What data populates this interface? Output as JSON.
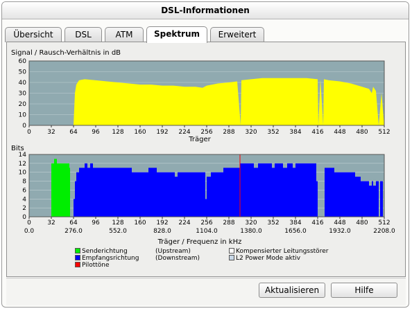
{
  "window": {
    "title": "DSL-Informationen"
  },
  "tabs": [
    {
      "label": "Übersicht",
      "active": false
    },
    {
      "label": "DSL",
      "active": false
    },
    {
      "label": "ATM",
      "active": false
    },
    {
      "label": "Spektrum",
      "active": true
    },
    {
      "label": "Erweitert",
      "active": false
    }
  ],
  "legend": {
    "send_label": "Senderichtung",
    "send_dir": "(Upstream)",
    "recv_label": "Empfangsrichtung",
    "recv_dir": "(Downstream)",
    "pilot_label": "Pilottöne",
    "comp_label": "Kompensierter Leitungsstörer",
    "l2_label": "L2 Power Mode aktiv",
    "colors": {
      "send": "#00ee00",
      "recv": "#0000ff",
      "pilot": "#ff0000",
      "comp": "#ffffff",
      "l2": "#c8d8e8"
    }
  },
  "buttons": {
    "refresh": "Aktualisieren",
    "help": "Hilfe"
  },
  "chart_data": [
    {
      "type": "area",
      "title": "Signal / Rausch-Verhältnis in dB",
      "xlabel": "Träger",
      "xlim": [
        0,
        512
      ],
      "ylim": [
        0,
        60
      ],
      "x_ticks": [
        0,
        32,
        64,
        96,
        128,
        160,
        192,
        224,
        256,
        288,
        320,
        352,
        384,
        416,
        448,
        480,
        512
      ],
      "y_ticks": [
        0,
        10,
        20,
        30,
        40,
        50,
        60
      ],
      "grid": true,
      "fill_color": "#ffff00",
      "background_color": "#90aab0",
      "series": [
        {
          "x": [
            64,
            66,
            68,
            72,
            80,
            96,
            112,
            128,
            144,
            160,
            176,
            192,
            208,
            224,
            240,
            250,
            256,
            264,
            272,
            288,
            300,
            305,
            306,
            320,
            336,
            352,
            368,
            384,
            400,
            416,
            417,
            420,
            424,
            425,
            432,
            448,
            464,
            480,
            490,
            494,
            496,
            500,
            504,
            508,
            512
          ],
          "y": [
            0,
            30,
            38,
            42,
            43,
            42,
            41,
            40,
            39,
            38,
            38,
            37,
            37,
            36,
            36,
            35,
            37,
            38,
            39,
            40,
            41,
            0,
            42,
            43,
            44,
            44,
            44,
            44,
            44,
            43,
            0,
            43,
            0,
            43,
            42,
            41,
            39,
            36,
            34,
            30,
            36,
            32,
            0,
            30,
            0
          ]
        }
      ]
    },
    {
      "type": "bar",
      "title": "Bits",
      "xlabel": "Träger / Frequenz in kHz",
      "xlim": [
        0,
        512
      ],
      "ylim": [
        0,
        14
      ],
      "x_ticks": [
        0,
        32,
        64,
        96,
        128,
        160,
        192,
        224,
        256,
        288,
        320,
        352,
        384,
        416,
        448,
        480,
        512
      ],
      "freq_ticks": [
        "0.0",
        "276.0",
        "552.0",
        "828.0",
        "1104.0",
        "1380.0",
        "1656.0",
        "1932.0",
        "2208.0"
      ],
      "y_ticks": [
        0,
        2,
        4,
        6,
        8,
        10,
        12,
        14
      ],
      "grid": true,
      "pilot_carrier": 304,
      "series": [
        {
          "name": "Senderichtung",
          "color": "#00ee00",
          "x_start": 32,
          "x_end": 58,
          "segments": [
            [
              32,
              36,
              12
            ],
            [
              36,
              40,
              13
            ],
            [
              40,
              58,
              12
            ],
            [
              58,
              59,
              11
            ]
          ]
        },
        {
          "name": "Empfangsrichtung",
          "color": "#0000ff",
          "segments": [
            [
              64,
              66,
              4
            ],
            [
              66,
              68,
              8
            ],
            [
              68,
              72,
              10
            ],
            [
              72,
              80,
              11
            ],
            [
              80,
              84,
              12
            ],
            [
              84,
              88,
              11
            ],
            [
              88,
              92,
              12
            ],
            [
              92,
              148,
              11
            ],
            [
              148,
              172,
              10
            ],
            [
              172,
              184,
              11
            ],
            [
              184,
              210,
              10
            ],
            [
              210,
              214,
              9
            ],
            [
              214,
              254,
              10
            ],
            [
              254,
              256,
              4
            ],
            [
              256,
              262,
              9
            ],
            [
              262,
              280,
              10
            ],
            [
              280,
              304,
              11
            ],
            [
              304,
              324,
              12
            ],
            [
              324,
              330,
              11
            ],
            [
              330,
              350,
              12
            ],
            [
              350,
              354,
              11
            ],
            [
              354,
              366,
              12
            ],
            [
              366,
              372,
              11
            ],
            [
              372,
              380,
              12
            ],
            [
              380,
              384,
              11
            ],
            [
              384,
              414,
              12
            ],
            [
              414,
              416,
              8
            ],
            [
              416,
              418,
              0
            ],
            [
              418,
              425,
              0
            ],
            [
              425,
              426,
              0
            ],
            [
              426,
              440,
              11
            ],
            [
              440,
              470,
              10
            ],
            [
              470,
              478,
              9
            ],
            [
              478,
              490,
              8
            ],
            [
              490,
              494,
              7
            ],
            [
              494,
              496,
              8
            ],
            [
              496,
              500,
              7
            ],
            [
              500,
              504,
              8
            ],
            [
              504,
              506,
              0
            ],
            [
              506,
              510,
              8
            ]
          ]
        }
      ]
    }
  ]
}
